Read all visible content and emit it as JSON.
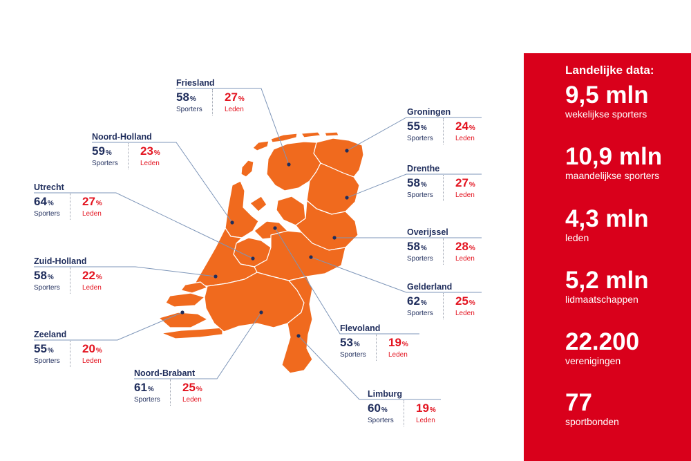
{
  "map": {
    "land_color": "#f06a1e",
    "provinces": [
      {
        "id": "friesland",
        "name": "Friesland",
        "sporters": "58",
        "leden": "27"
      },
      {
        "id": "noord-holland",
        "name": "Noord-Holland",
        "sporters": "59",
        "leden": "23"
      },
      {
        "id": "utrecht",
        "name": "Utrecht",
        "sporters": "64",
        "leden": "27"
      },
      {
        "id": "zuid-holland",
        "name": "Zuid-Holland",
        "sporters": "58",
        "leden": "22"
      },
      {
        "id": "zeeland",
        "name": "Zeeland",
        "sporters": "55",
        "leden": "20"
      },
      {
        "id": "noord-brabant",
        "name": "Noord-Brabant",
        "sporters": "61",
        "leden": "25"
      },
      {
        "id": "groningen",
        "name": "Groningen",
        "sporters": "55",
        "leden": "24"
      },
      {
        "id": "drenthe",
        "name": "Drenthe",
        "sporters": "58",
        "leden": "27"
      },
      {
        "id": "overijssel",
        "name": "Overijssel",
        "sporters": "58",
        "leden": "28"
      },
      {
        "id": "gelderland",
        "name": "Gelderland",
        "sporters": "62",
        "leden": "25"
      },
      {
        "id": "flevoland",
        "name": "Flevoland",
        "sporters": "53",
        "leden": "19"
      },
      {
        "id": "limburg",
        "name": "Limburg",
        "sporters": "60",
        "leden": "19"
      }
    ],
    "pct_sign": "%",
    "sporters_label": "Sporters",
    "leden_label": "Leden"
  },
  "national": {
    "title": "Landelijke data:",
    "stats": [
      {
        "value": "9,5 mln",
        "label": "wekelijkse sporters"
      },
      {
        "value": "10,9 mln",
        "label": "maandelijkse sporters"
      },
      {
        "value": "4,3 mln",
        "label": "leden"
      },
      {
        "value": "5,2 mln",
        "label": "lidmaatschappen"
      },
      {
        "value": "22.200",
        "label": "verenigingen"
      },
      {
        "value": "77",
        "label": "sportbonden"
      }
    ]
  }
}
